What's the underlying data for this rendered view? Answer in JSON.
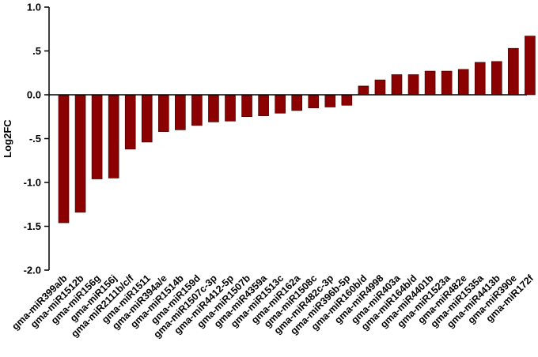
{
  "colors": {
    "bar": "#8b0000",
    "bar_stroke": "#3a0000",
    "axis": "#000000"
  },
  "chart_data": {
    "type": "bar",
    "title": "",
    "xlabel": "",
    "ylabel": "Log2FC",
    "ylim": [
      -2.0,
      1.0
    ],
    "yticks": [
      -2.0,
      -1.5,
      -1.0,
      -0.5,
      0.0,
      0.5,
      1.0
    ],
    "ytick_labels": [
      "-2.0",
      "-1.5",
      "-1.0",
      "-.5",
      "0.0",
      ".5",
      "1.0"
    ],
    "grid": false,
    "categories": [
      "gma-miR399a/b",
      "gma-miR1512b",
      "gma-miR156g",
      "gma-miR156j",
      "gma-miR2111b/c/f",
      "gma-miR1511",
      "gma-miR394a/e",
      "gma-miR1514b",
      "gma-miR159d",
      "gma-miR1507c-3p",
      "gma-miR4412-5p",
      "gma-miR1507b",
      "gma-miR4359a",
      "gma-miR1513c",
      "gma-miR162a",
      "gma-miR1508c",
      "gma-miR482c-3p",
      "gma-miR396b-5p",
      "gma-miR160b/d",
      "gma-miR4998",
      "gma-miR403a",
      "gma-miR164b/d",
      "gma-miR4401b",
      "gma-miR1523a",
      "gma-miR482e",
      "gma-miR1535a",
      "gma-miR4413b",
      "gma-miR390e",
      "gma-miR172f"
    ],
    "values": [
      -1.46,
      -1.34,
      -0.96,
      -0.95,
      -0.62,
      -0.54,
      -0.42,
      -0.4,
      -0.35,
      -0.31,
      -0.3,
      -0.25,
      -0.24,
      -0.21,
      -0.18,
      -0.15,
      -0.14,
      -0.12,
      0.1,
      0.17,
      0.23,
      0.23,
      0.27,
      0.27,
      0.29,
      0.37,
      0.38,
      0.53,
      0.67
    ]
  }
}
